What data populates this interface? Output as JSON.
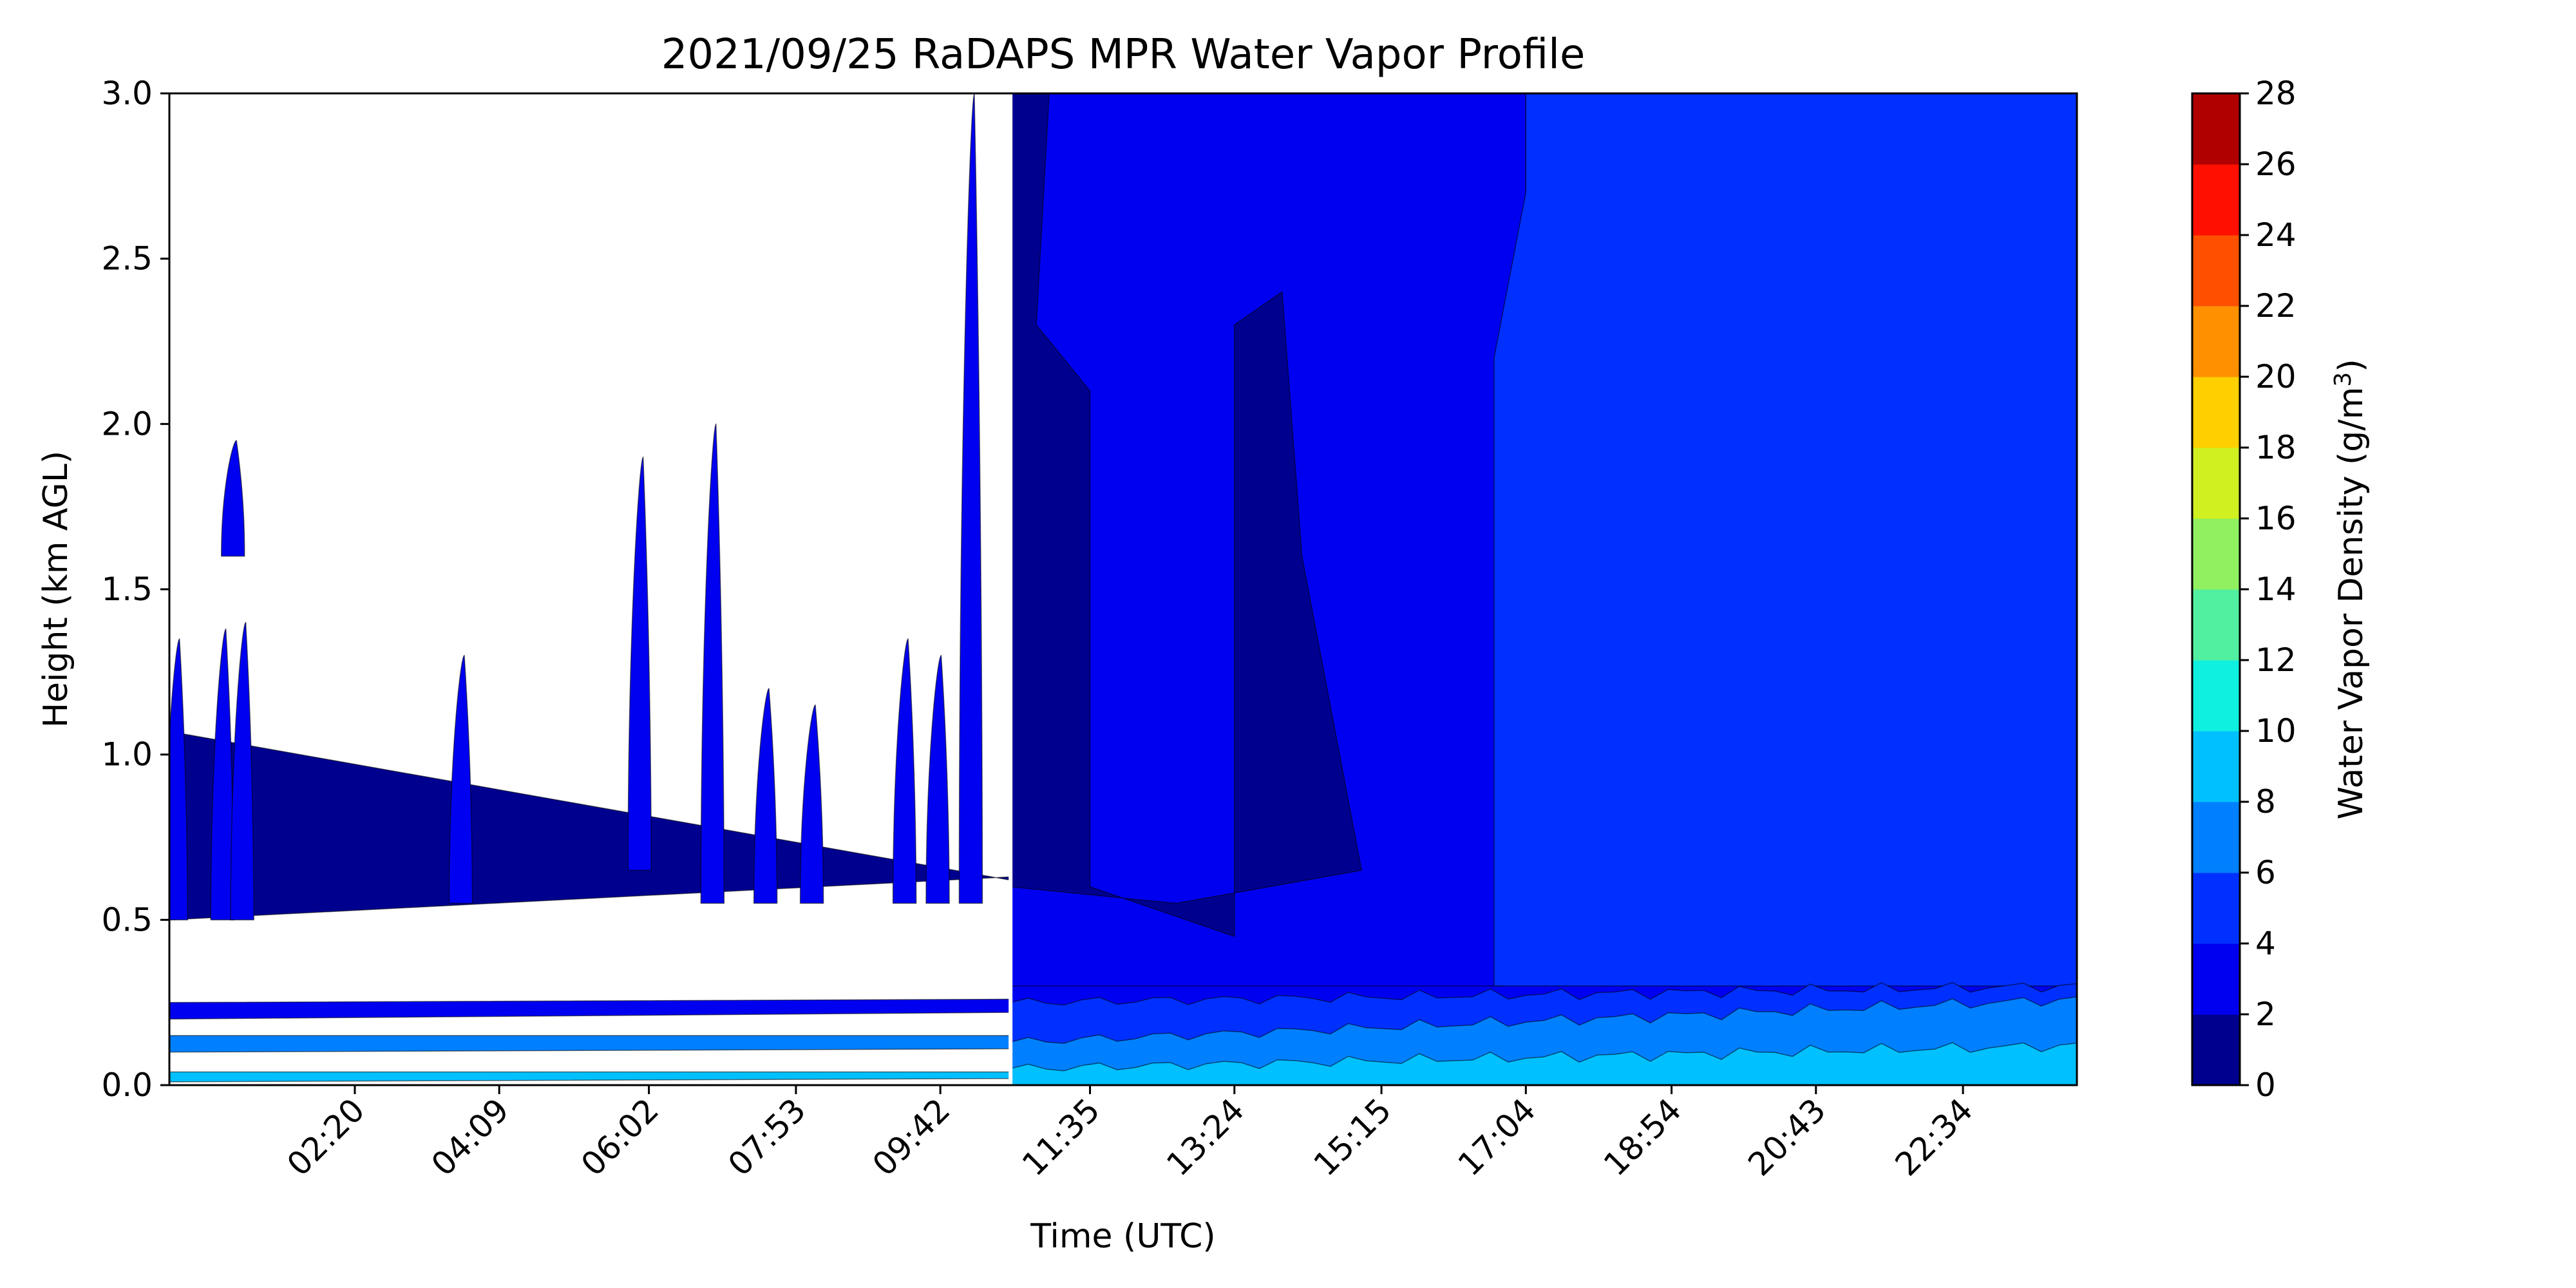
{
  "chart_data": {
    "type": "heatmap",
    "title": "2021/09/25 RaDAPS MPR Water Vapor Profile",
    "xlabel": "Time (UTC)",
    "ylabel": "Height (km AGL)",
    "colorbar_label": "Water Vapor Density (g/m",
    "colorbar_label_sup": "3",
    "colorbar_label_end": ")",
    "ylim": [
      0,
      3.0
    ],
    "y_ticks": [
      "0.0",
      "0.5",
      "1.0",
      "1.5",
      "2.0",
      "2.5",
      "3.0"
    ],
    "x_ticks": [
      "02:20",
      "04:09",
      "06:02",
      "07:53",
      "09:42",
      "11:35",
      "13:24",
      "15:15",
      "17:04",
      "18:54",
      "20:43",
      "22:34"
    ],
    "levels": [
      0,
      2,
      4,
      6,
      8,
      10,
      12,
      14,
      16,
      18,
      20,
      22,
      24,
      26,
      28
    ],
    "level_labels": [
      "0",
      "2",
      "4",
      "6",
      "8",
      "10",
      "12",
      "14",
      "16",
      "18",
      "20",
      "22",
      "24",
      "26",
      "28"
    ],
    "colors": [
      "#00008f",
      "#0000f0",
      "#0030ff",
      "#0080ff",
      "#00c0ff",
      "#10f0e0",
      "#50f0a0",
      "#90f060",
      "#d0f020",
      "#ffd000",
      "#ff9000",
      "#ff5000",
      "#ff1000",
      "#b00000"
    ],
    "data_gap_end": "10:35",
    "regions": [
      {
        "name": "left-band-upper",
        "range": "2-4",
        "from": "00:00",
        "to": "10:35",
        "y_bottom": [
          0.25,
          0.26
        ],
        "y_top": [
          0.2,
          0.22
        ]
      },
      {
        "name": "left-band-middle",
        "range": "6-8",
        "from": "00:00",
        "to": "10:35",
        "y_bottom": [
          0.15,
          0.15
        ],
        "y_top": [
          0.1,
          0.11
        ]
      },
      {
        "name": "left-band-lower",
        "range": "8-10",
        "from": "00:00",
        "to": "10:35",
        "y_bottom": [
          0.04,
          0.04
        ],
        "y_top": [
          0.01,
          0.02
        ]
      },
      {
        "name": "left-wedge",
        "range": "0-2",
        "from": "00:00",
        "to": "10:35",
        "y_top": [
          1.07,
          0.62
        ],
        "y_bottom": [
          0.5,
          0.63
        ]
      },
      {
        "name": "right-lowest",
        "range": "8-10",
        "from": "10:35",
        "to": "24:00",
        "y_top": [
          0.05,
          0.12
        ]
      },
      {
        "name": "right-second",
        "range": "6-8",
        "from": "10:35",
        "to": "24:00",
        "y_top": [
          0.13,
          0.26
        ]
      },
      {
        "name": "right-third",
        "range": "4-6",
        "from": "10:35",
        "to": "24:00",
        "y_top": [
          0.25,
          0.3
        ]
      }
    ]
  }
}
